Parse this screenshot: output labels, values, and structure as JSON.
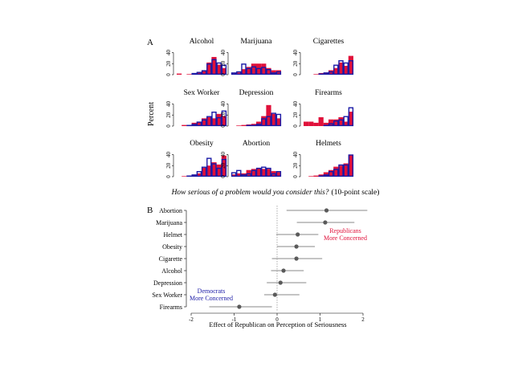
{
  "panel_a_label": "A",
  "panel_b_label": "B",
  "chart_data": [
    {
      "type": "bar",
      "panel": "A",
      "ylabel": "Percent",
      "yticks": [
        "0",
        "20",
        "40"
      ],
      "ylim": [
        0,
        45
      ],
      "caption_italic": "How serious of a problem would you consider this?",
      "caption_plain": "(10-point scale)",
      "categories": [
        "1",
        "2",
        "3",
        "4",
        "5",
        "6",
        "7",
        "8",
        "9",
        "10"
      ],
      "series_names": [
        "Democrats",
        "Republicans"
      ],
      "colors": {
        "democrats": "#1a1aa6",
        "republicans": "#e0103a"
      },
      "panels": [
        {
          "title": "Alcohol",
          "democrats": [
            0,
            0,
            1,
            3,
            5,
            8,
            20,
            28,
            22,
            18
          ],
          "republicans": [
            2,
            0,
            1,
            2,
            4,
            8,
            22,
            32,
            18,
            12
          ]
        },
        {
          "title": "Marijuana",
          "democrats": [
            4,
            6,
            20,
            12,
            15,
            12,
            14,
            10,
            4,
            6
          ],
          "republicans": [
            2,
            4,
            10,
            14,
            20,
            20,
            20,
            12,
            8,
            8
          ]
        },
        {
          "title": "Cigarettes",
          "democrats": [
            0,
            0,
            1,
            2,
            4,
            6,
            18,
            26,
            22,
            26
          ],
          "republicans": [
            0,
            0,
            1,
            3,
            4,
            8,
            12,
            22,
            16,
            34
          ]
        },
        {
          "title": "Sex Worker",
          "democrats": [
            0,
            1,
            2,
            4,
            8,
            12,
            18,
            26,
            16,
            28
          ],
          "republicans": [
            0,
            2,
            2,
            6,
            8,
            14,
            16,
            14,
            22,
            18
          ]
        },
        {
          "title": "Depression",
          "democrats": [
            0,
            0,
            1,
            2,
            2,
            4,
            14,
            18,
            24,
            22
          ],
          "republicans": [
            0,
            1,
            2,
            3,
            4,
            8,
            18,
            38,
            22,
            14
          ]
        },
        {
          "title": "Firearms",
          "democrats": [
            0,
            0,
            0,
            1,
            2,
            5,
            10,
            12,
            18,
            34
          ],
          "republicans": [
            8,
            8,
            6,
            16,
            6,
            12,
            12,
            16,
            8,
            26
          ]
        },
        {
          "title": "Obesity",
          "democrats": [
            0,
            1,
            2,
            4,
            10,
            18,
            34,
            24,
            16,
            32
          ],
          "republicans": [
            0,
            1,
            2,
            3,
            6,
            16,
            20,
            26,
            22,
            38
          ]
        },
        {
          "title": "Abortion",
          "democrats": [
            8,
            12,
            4,
            6,
            12,
            16,
            18,
            16,
            6,
            10
          ],
          "republicans": [
            4,
            6,
            6,
            12,
            14,
            16,
            14,
            14,
            10,
            8
          ]
        },
        {
          "title": "Helmets",
          "democrats": [
            0,
            0,
            1,
            2,
            4,
            10,
            14,
            22,
            22,
            40
          ],
          "republicans": [
            0,
            1,
            2,
            4,
            8,
            12,
            18,
            20,
            24,
            40
          ]
        }
      ]
    },
    {
      "type": "scatter",
      "panel": "B",
      "xlabel": "Effect of Republican on Perception of Seriousness",
      "xlim": [
        -2,
        2
      ],
      "xticks": [
        "-2",
        "-1",
        "0",
        "1",
        "2"
      ],
      "categories": [
        "Abortion",
        "Marijuana",
        "Helmet",
        "Obesity",
        "Cigarette",
        "Alcohol",
        "Depression",
        "Sex Worker",
        "Firearms"
      ],
      "estimates": [
        1.15,
        1.12,
        0.48,
        0.45,
        0.45,
        0.15,
        0.08,
        -0.05,
        -0.88
      ],
      "ci_low": [
        0.22,
        0.46,
        -0.02,
        0.0,
        -0.12,
        -0.14,
        -0.24,
        -0.3,
        -1.58
      ],
      "ci_high": [
        2.1,
        1.8,
        0.96,
        0.88,
        1.05,
        0.62,
        0.68,
        0.52,
        -0.12
      ],
      "annotations": [
        {
          "line1": "Republicans",
          "line2": "More Concerned",
          "color": "#e0103a"
        },
        {
          "line1": "Democrats",
          "line2": "More Concerned",
          "color": "#1a1aa6"
        }
      ]
    }
  ]
}
